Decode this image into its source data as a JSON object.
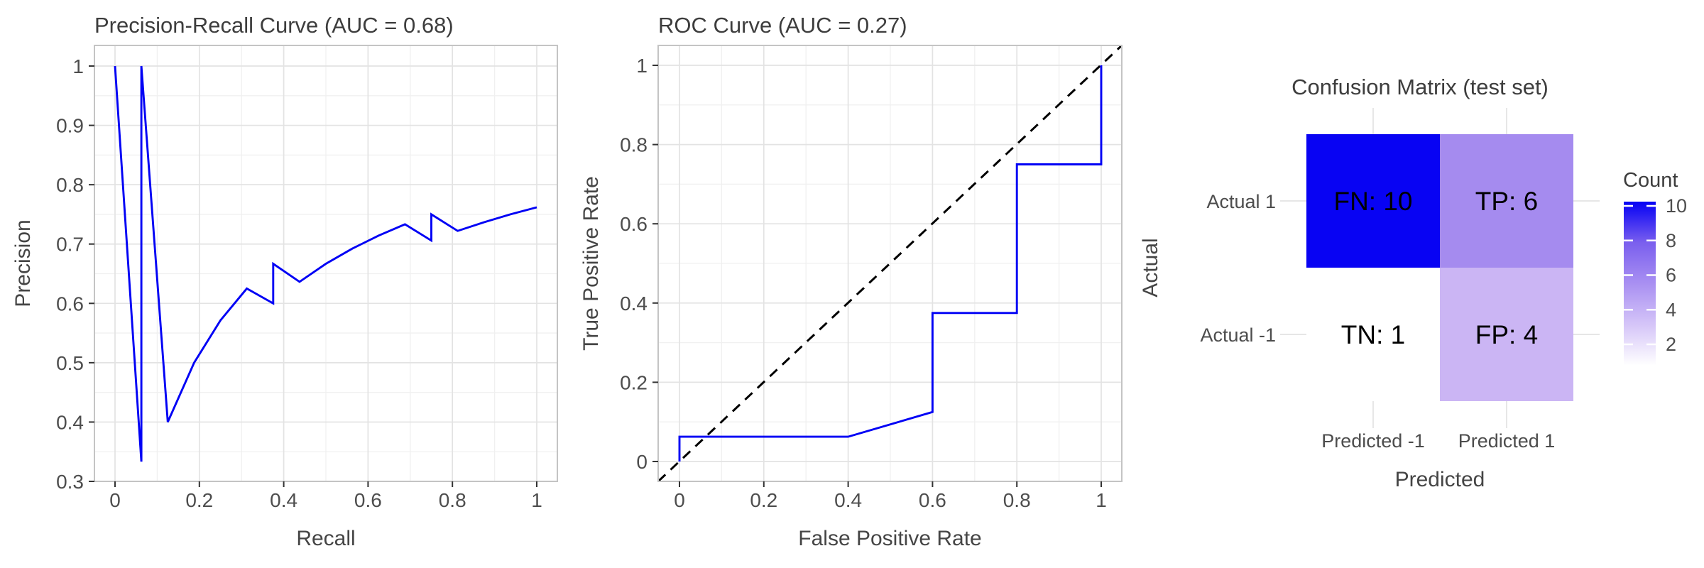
{
  "figure_title": "Model evaluation panels",
  "theme": {
    "background": "#ffffff",
    "grid_major": "#e3e3e3",
    "grid_minor": "#f0f0f0",
    "panel_border": "#c4c4c4",
    "tick_color": "#333333",
    "axis_text_color": "#4d4d4d",
    "axis_title_color": "#454545",
    "title_color": "#3d3d3d",
    "curve_color": "#0000f5",
    "diagonal_color": "#000000"
  },
  "chart_data": [
    {
      "id": "pr",
      "type": "line",
      "title": "Precision-Recall Curve (AUC = 0.68)",
      "xlabel": "Recall",
      "ylabel": "Precision",
      "xlim": [
        0,
        1
      ],
      "ylim": [
        0.3,
        1.0
      ],
      "grid": "major+minor",
      "legend_position": "none",
      "xticks": [
        0,
        0.2,
        0.4,
        0.6,
        0.8,
        1
      ],
      "xtick_labels": [
        "0",
        "0.2",
        "0.4",
        "0.6",
        "0.8",
        "1"
      ],
      "yticks": [
        0.3,
        0.4,
        0.5,
        0.6,
        0.7,
        0.8,
        0.9,
        1
      ],
      "ytick_labels": [
        "0.3",
        "0.4",
        "0.5",
        "0.6",
        "0.7",
        "0.8",
        "0.9",
        "1"
      ],
      "line_color": "#0000f5",
      "points": [
        [
          0,
          1
        ],
        [
          0.0625,
          0.3333
        ],
        [
          0.0625,
          1
        ],
        [
          0.125,
          0.4
        ],
        [
          0.1875,
          0.5
        ],
        [
          0.25,
          0.5714
        ],
        [
          0.3125,
          0.625
        ],
        [
          0.375,
          0.6
        ],
        [
          0.375,
          0.6667
        ],
        [
          0.4375,
          0.6364
        ],
        [
          0.5,
          0.6667
        ],
        [
          0.5625,
          0.6923
        ],
        [
          0.625,
          0.7143
        ],
        [
          0.6875,
          0.7333
        ],
        [
          0.75,
          0.7059
        ],
        [
          0.75,
          0.75
        ],
        [
          0.8125,
          0.7222
        ],
        [
          0.875,
          0.7368
        ],
        [
          0.9375,
          0.75
        ],
        [
          1,
          0.7619
        ]
      ]
    },
    {
      "id": "roc",
      "type": "line",
      "title": "ROC Curve (AUC = 0.27)",
      "xlabel": "False Positive Rate",
      "ylabel": "True Positive Rate",
      "xlim": [
        0,
        1
      ],
      "ylim": [
        0,
        1
      ],
      "grid": "major+minor",
      "legend_position": "none",
      "xticks": [
        0,
        0.2,
        0.4,
        0.6,
        0.8,
        1
      ],
      "xtick_labels": [
        "0",
        "0.2",
        "0.4",
        "0.6",
        "0.8",
        "1"
      ],
      "yticks": [
        0,
        0.2,
        0.4,
        0.6,
        0.8,
        1
      ],
      "ytick_labels": [
        "0",
        "0.2",
        "0.4",
        "0.6",
        "0.8",
        "1"
      ],
      "line_color": "#0000f5",
      "diagonal": {
        "style": "dashed",
        "color": "#000000",
        "from": [
          0,
          0
        ],
        "to": [
          1,
          1
        ]
      },
      "points": [
        [
          0,
          0
        ],
        [
          0,
          0.0625
        ],
        [
          0.4,
          0.0625
        ],
        [
          0.6,
          0.125
        ],
        [
          0.6,
          0.375
        ],
        [
          0.8,
          0.375
        ],
        [
          0.8,
          0.75
        ],
        [
          1,
          0.75
        ],
        [
          1,
          1
        ]
      ]
    },
    {
      "id": "cm",
      "type": "heatmap",
      "title": "Confusion Matrix (test set)",
      "xlabel": "Predicted",
      "ylabel": "Actual",
      "columns": [
        "Predicted -1",
        "Predicted 1"
      ],
      "rows": [
        "Actual 1",
        "Actual -1"
      ],
      "cells": [
        [
          {
            "label": "FN: 10",
            "count": 10,
            "color": "#0803f3"
          },
          {
            "label": "TP: 6",
            "count": 6,
            "color": "#a58bef"
          }
        ],
        [
          {
            "label": "TN: 1",
            "count": 1,
            "color": "#ffffff"
          },
          {
            "label": "FP: 4",
            "count": 4,
            "color": "#cbb5f4"
          }
        ]
      ],
      "legend": {
        "title": "Count",
        "ticks": [
          10,
          8,
          6,
          4,
          2
        ],
        "min": 1,
        "max": 10,
        "low_color": "#ffffff",
        "high_color": "#0500f5",
        "gradient_stops": [
          "#0500f5",
          "#7a5fee",
          "#a990f2",
          "#d5c5f8",
          "#ffffff"
        ]
      }
    }
  ]
}
